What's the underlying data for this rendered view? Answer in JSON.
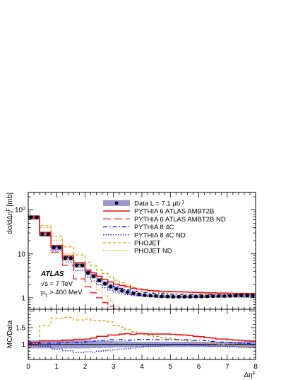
{
  "chart_data": [
    {
      "panel": "main",
      "type": "line",
      "ylabel": "dσ/dΔη^F [mb]",
      "yscale": "log",
      "ylim": [
        0.55,
        250
      ],
      "xlim": [
        0,
        8
      ],
      "y_tick_labels": [
        "1",
        "10",
        "10^2"
      ],
      "x": [
        0.1,
        0.3,
        0.5,
        0.7,
        0.9,
        1.1,
        1.3,
        1.5,
        1.7,
        1.9,
        2.1,
        2.3,
        2.5,
        2.7,
        2.9,
        3.1,
        3.3,
        3.5,
        3.7,
        3.9,
        4.1,
        4.3,
        4.5,
        4.7,
        4.9,
        5.1,
        5.3,
        5.5,
        5.7,
        5.9,
        6.1,
        6.3,
        6.5,
        6.7,
        6.9,
        7.1,
        7.3,
        7.5,
        7.7,
        7.9
      ],
      "data_band_relative_uncertainty": [
        0.12,
        0.12,
        0.12,
        0.12,
        0.12,
        0.12,
        0.12,
        0.12,
        0.12,
        0.12,
        0.12,
        0.11,
        0.11,
        0.1,
        0.1,
        0.09,
        0.09,
        0.09,
        0.08,
        0.08,
        0.08,
        0.08,
        0.08,
        0.08,
        0.08,
        0.08,
        0.08,
        0.08,
        0.08,
        0.08,
        0.08,
        0.08,
        0.08,
        0.08,
        0.08,
        0.08,
        0.08,
        0.09,
        0.1,
        0.11
      ],
      "series": [
        {
          "name": "Data L = 7.1 μb⁻¹",
          "style": "points-band",
          "color": "#000000",
          "band_color": "#9999cc",
          "values": [
            68,
            68,
            28,
            28,
            14,
            14,
            8,
            8,
            5.5,
            5.5,
            3.7,
            3.1,
            2.5,
            2.1,
            1.8,
            1.6,
            1.45,
            1.35,
            1.27,
            1.2,
            1.15,
            1.12,
            1.1,
            1.08,
            1.07,
            1.06,
            1.06,
            1.06,
            1.06,
            1.07,
            1.07,
            1.08,
            1.09,
            1.1,
            1.1,
            1.11,
            1.12,
            1.13,
            1.13,
            1.14
          ]
        },
        {
          "name": "PYTHIA 6 ATLAS AMBT2B",
          "style": "solid",
          "color": "#ee1111",
          "values": [
            72,
            72,
            31,
            31,
            15.5,
            15.5,
            9,
            9,
            6.3,
            6.3,
            4.3,
            3.7,
            3.1,
            2.6,
            2.3,
            2.05,
            1.9,
            1.78,
            1.65,
            1.58,
            1.52,
            1.47,
            1.44,
            1.41,
            1.4,
            1.38,
            1.37,
            1.36,
            1.35,
            1.33,
            1.32,
            1.3,
            1.3,
            1.28,
            1.28,
            1.27,
            1.26,
            1.26,
            1.25,
            1.25
          ]
        },
        {
          "name": "PYTHIA 6 ATLAS AMBT2B ND",
          "style": "longdash",
          "color": "#ee1111",
          "values": [
            65,
            65,
            26,
            26,
            11,
            11,
            5.5,
            5.5,
            2.7,
            2.7,
            1.8,
            1.3,
            1.0,
            0.78,
            0.64,
            0.57,
            0.5,
            0.5,
            0.5,
            0.5,
            0.5,
            0.5,
            0.5,
            0.5,
            0.5,
            0.5,
            0.5,
            0.5,
            0.5,
            0.5,
            0.5,
            0.5,
            0.5,
            0.5,
            0.5,
            0.5,
            0.5,
            0.5,
            0.5,
            0.5
          ]
        },
        {
          "name": "PYTHIA 8 4C",
          "style": "dashdot",
          "color": "#1111dd",
          "values": [
            70,
            70,
            29,
            29,
            14.5,
            14.5,
            8.5,
            8.5,
            5.8,
            5.8,
            4.0,
            3.4,
            2.8,
            2.35,
            2.05,
            1.8,
            1.65,
            1.52,
            1.43,
            1.37,
            1.32,
            1.28,
            1.25,
            1.23,
            1.22,
            1.21,
            1.21,
            1.21,
            1.21,
            1.2,
            1.2,
            1.2,
            1.19,
            1.18,
            1.18,
            1.17,
            1.17,
            1.17,
            1.16,
            1.15
          ]
        },
        {
          "name": "PYTHIA 8 4C ND",
          "style": "dotted",
          "color": "#1111dd",
          "values": [
            66,
            66,
            26.5,
            26.5,
            12,
            12,
            6.5,
            6.5,
            4.2,
            4.2,
            2.9,
            2.4,
            2.0,
            1.7,
            1.5,
            1.35,
            1.25,
            1.18,
            1.13,
            1.1,
            1.08,
            1.06,
            1.05,
            1.04,
            1.04,
            1.04,
            1.04,
            1.04,
            1.04,
            1.04,
            1.04,
            1.04,
            1.04,
            1.04,
            1.04,
            1.04,
            1.04,
            1.03,
            1.03,
            1.03
          ]
        },
        {
          "name": "PHOJET",
          "style": "dashed",
          "color": "#d4a000",
          "values": [
            65,
            65,
            44,
            44,
            25,
            25,
            14.5,
            14.5,
            9.5,
            9.5,
            6.5,
            5.3,
            4.3,
            3.6,
            3.0,
            2.5,
            2.2,
            1.95,
            1.75,
            1.6,
            1.5,
            1.42,
            1.36,
            1.31,
            1.27,
            1.23,
            1.21,
            1.19,
            1.17,
            1.15,
            1.14,
            1.13,
            1.12,
            1.11,
            1.1,
            1.09,
            1.08,
            1.07,
            1.06,
            1.05
          ]
        },
        {
          "name": "PHOJET ND",
          "style": "finedotted",
          "color": "#d4a000",
          "values": [
            62,
            62,
            40,
            40,
            20,
            20,
            10,
            10,
            5.2,
            5.2,
            3.1,
            2.1,
            1.5,
            1.1,
            0.85,
            0.66,
            0.55,
            0.5,
            0.5,
            0.5,
            0.5,
            0.5,
            0.5,
            0.5,
            0.5,
            0.5,
            0.5,
            0.5,
            0.5,
            0.5,
            0.5,
            0.5,
            0.5,
            0.5,
            0.5,
            0.5,
            0.5,
            0.5,
            0.5,
            0.5
          ]
        }
      ]
    },
    {
      "panel": "ratio",
      "type": "line",
      "ylabel": "MC/Data",
      "xlabel": "Δη^F",
      "ylim": [
        0.55,
        2.05
      ],
      "xlim": [
        0,
        8
      ],
      "x_tick_labels": [
        "0",
        "1",
        "2",
        "3",
        "4",
        "5",
        "6",
        "7",
        "8"
      ],
      "y_tick_labels": [
        "1",
        "1.5"
      ],
      "band_relative_uncertainty_ref": "main",
      "series": [
        {
          "name": "PYTHIA 6 ATLAS AMBT2B",
          "style": "solid",
          "color": "#ee1111",
          "values": [
            1.06,
            1.06,
            1.11,
            1.11,
            1.11,
            1.11,
            1.13,
            1.13,
            1.15,
            1.15,
            1.16,
            1.19,
            1.24,
            1.24,
            1.28,
            1.28,
            1.31,
            1.32,
            1.3,
            1.32,
            1.32,
            1.31,
            1.31,
            1.31,
            1.31,
            1.3,
            1.29,
            1.28,
            1.27,
            1.24,
            1.23,
            1.2,
            1.19,
            1.16,
            1.16,
            1.14,
            1.13,
            1.12,
            1.11,
            1.1
          ]
        },
        {
          "name": "PYTHIA 8 4C",
          "style": "dashdot",
          "color": "#1111dd",
          "values": [
            1.03,
            1.03,
            1.04,
            1.04,
            1.04,
            1.04,
            1.06,
            1.06,
            1.05,
            1.05,
            1.08,
            1.1,
            1.12,
            1.12,
            1.14,
            1.13,
            1.14,
            1.13,
            1.13,
            1.14,
            1.15,
            1.14,
            1.14,
            1.14,
            1.14,
            1.14,
            1.14,
            1.14,
            1.14,
            1.12,
            1.12,
            1.11,
            1.09,
            1.07,
            1.07,
            1.05,
            1.04,
            1.04,
            1.03,
            1.01
          ]
        },
        {
          "name": "PYTHIA 8 4C ND",
          "style": "dotted",
          "color": "#1111dd",
          "values": [
            0.97,
            0.97,
            0.95,
            0.95,
            0.86,
            0.86,
            0.81,
            0.81,
            0.76,
            0.76,
            0.78,
            0.77,
            0.8,
            0.81,
            0.83,
            0.84,
            0.86,
            0.87,
            0.89,
            0.92,
            0.94,
            0.95,
            0.95,
            0.96,
            0.97,
            0.98,
            0.98,
            0.98,
            0.98,
            0.97,
            0.97,
            0.96,
            0.95,
            0.95,
            0.95,
            0.94,
            0.93,
            0.91,
            0.91,
            0.9
          ]
        },
        {
          "name": "PHOJET",
          "style": "dashed",
          "color": "#d4a000",
          "values": [
            0.96,
            0.96,
            1.57,
            1.57,
            1.78,
            1.78,
            1.81,
            1.81,
            1.73,
            1.73,
            1.76,
            1.71,
            1.72,
            1.71,
            1.67,
            1.56,
            1.52,
            1.44,
            1.38,
            1.33,
            1.3,
            1.27,
            1.24,
            1.21,
            1.19,
            1.16,
            1.14,
            1.12,
            1.1,
            1.07,
            1.06,
            1.05,
            1.03,
            1.01,
            1.0,
            0.98,
            0.96,
            0.95,
            0.94,
            0.92
          ]
        }
      ]
    }
  ],
  "legend": {
    "entries": [
      {
        "label": "Data L = 7.1 μb⁻¹",
        "symbol": "points-band",
        "color": "#000000",
        "band_color": "#9999cc"
      },
      {
        "label": "PYTHIA 6 ATLAS AMBT2B",
        "symbol": "solid",
        "color": "#ee1111"
      },
      {
        "label": "PYTHIA 6 ATLAS AMBT2B ND",
        "symbol": "longdash",
        "color": "#ee1111"
      },
      {
        "label": "PYTHIA 8 4C",
        "symbol": "dashdot",
        "color": "#1111dd"
      },
      {
        "label": "PYTHIA 8 4C ND",
        "symbol": "dotted",
        "color": "#1111dd"
      },
      {
        "label": "PHOJET",
        "symbol": "dashed",
        "color": "#d4a000"
      },
      {
        "label": "PHOJET ND",
        "symbol": "finedotted",
        "color": "#d4a000"
      }
    ]
  },
  "annotations": {
    "experiment": "ATLAS",
    "energy": "√s = 7 TeV",
    "pt_cut": "p_T > 400 MeV"
  }
}
